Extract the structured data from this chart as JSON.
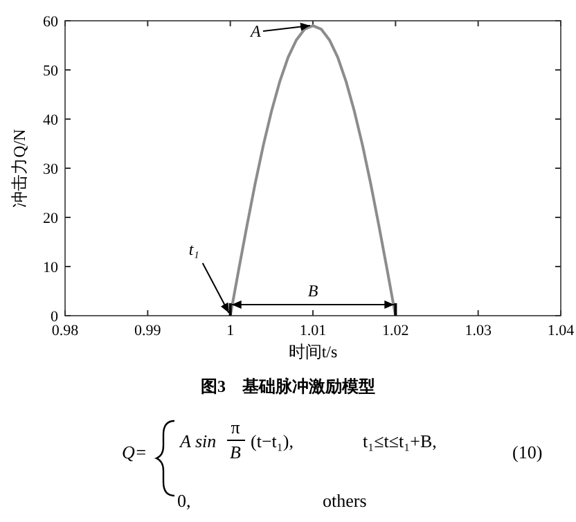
{
  "chart_data": {
    "type": "line",
    "xlabel": "时间t/s",
    "ylabel": "冲击力Q/N",
    "x": [
      1,
      1.001,
      1.002,
      1.003,
      1.004,
      1.005,
      1.006,
      1.007,
      1.008,
      1.009,
      1.01,
      1.011,
      1.012,
      1.013,
      1.014,
      1.015,
      1.016,
      1.017,
      1.018,
      1.019,
      1.02
    ],
    "series": [
      {
        "color": "#8c8c8c",
        "values": [
          0,
          9.2,
          18.2,
          26.8,
          34.7,
          41.7,
          47.7,
          52.6,
          56.1,
          58.3,
          59,
          58.3,
          56.1,
          52.6,
          47.7,
          41.7,
          34.7,
          26.8,
          18.2,
          9.2,
          0
        ]
      }
    ],
    "xlim": [
      0.98,
      1.04
    ],
    "xticks": [
      0.98,
      0.99,
      1,
      1.01,
      1.02,
      1.03,
      1.04
    ],
    "ylim": [
      0,
      60
    ],
    "yticks": [
      0,
      10,
      20,
      30,
      40,
      50,
      60
    ],
    "grid": false,
    "marker": "none",
    "line_style": "solid",
    "annotations": [
      {
        "text": "A",
        "x": 1.01,
        "y": 59
      },
      {
        "text": "t₁",
        "x": 1,
        "y": 0
      },
      "B",
      "图3　基础脉冲激励模型",
      "Q=",
      "A sin",
      "π",
      "B",
      "(t−t₁),",
      "t₁≤t≤t₁+B,",
      "0,",
      "others",
      "(10)"
    ]
  }
}
